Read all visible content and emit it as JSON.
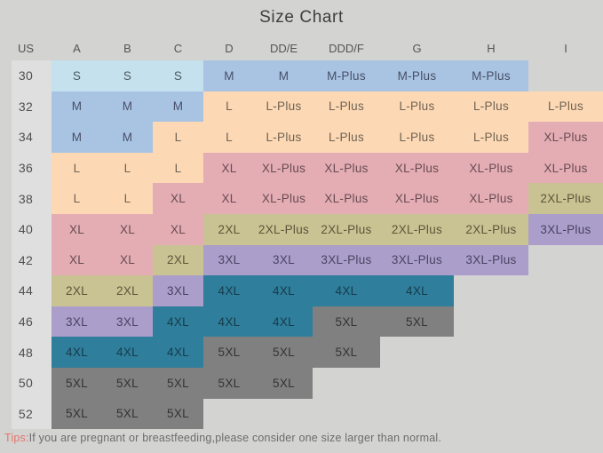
{
  "title": "Size Chart",
  "chart_data": {
    "type": "table",
    "title": "Size Chart",
    "columns": [
      "US",
      "A",
      "B",
      "C",
      "D",
      "DD/E",
      "DDD/F",
      "G",
      "H",
      "I"
    ],
    "rows": [
      {
        "us": "30",
        "cells": [
          "S",
          "S",
          "S",
          "M",
          "M",
          "M-Plus",
          "M-Plus",
          "M-Plus",
          null
        ]
      },
      {
        "us": "32",
        "cells": [
          "M",
          "M",
          "M",
          "L",
          "L-Plus",
          "L-Plus",
          "L-Plus",
          "L-Plus",
          "L-Plus"
        ]
      },
      {
        "us": "34",
        "cells": [
          "M",
          "M",
          "L",
          "L",
          "L-Plus",
          "L-Plus",
          "L-Plus",
          "L-Plus",
          "XL-Plus"
        ]
      },
      {
        "us": "36",
        "cells": [
          "L",
          "L",
          "L",
          "XL",
          "XL-Plus",
          "XL-Plus",
          "XL-Plus",
          "XL-Plus",
          "XL-Plus"
        ]
      },
      {
        "us": "38",
        "cells": [
          "L",
          "L",
          "XL",
          "XL",
          "XL-Plus",
          "XL-Plus",
          "XL-Plus",
          "XL-Plus",
          "2XL-Plus"
        ]
      },
      {
        "us": "40",
        "cells": [
          "XL",
          "XL",
          "XL",
          "2XL",
          "2XL-Plus",
          "2XL-Plus",
          "2XL-Plus",
          "2XL-Plus",
          "3XL-Plus"
        ]
      },
      {
        "us": "42",
        "cells": [
          "XL",
          "XL",
          "2XL",
          "3XL",
          "3XL",
          "3XL-Plus",
          "3XL-Plus",
          "3XL-Plus",
          null
        ]
      },
      {
        "us": "44",
        "cells": [
          "2XL",
          "2XL",
          "3XL",
          "4XL",
          "4XL",
          "4XL",
          "4XL",
          null,
          null
        ]
      },
      {
        "us": "46",
        "cells": [
          "3XL",
          "3XL",
          "4XL",
          "4XL",
          "4XL",
          "5XL",
          "5XL",
          null,
          null
        ]
      },
      {
        "us": "48",
        "cells": [
          "4XL",
          "4XL",
          "4XL",
          "5XL",
          "5XL",
          "5XL",
          null,
          null,
          null
        ]
      },
      {
        "us": "50",
        "cells": [
          "5XL",
          "5XL",
          "5XL",
          "5XL",
          "5XL",
          null,
          null,
          null,
          null
        ]
      },
      {
        "us": "52",
        "cells": [
          "5XL",
          "5XL",
          "5XL",
          null,
          null,
          null,
          null,
          null,
          null
        ]
      }
    ]
  },
  "palette": {
    "s": {
      "bg": "#c4e1ed",
      "fg": "#4b5a63"
    },
    "m": {
      "bg": "#a9c4e3",
      "fg": "#474f66"
    },
    "l": {
      "bg": "#fcd8b5",
      "fg": "#6f6352"
    },
    "xl": {
      "bg": "#e4adb4",
      "fg": "#674b51"
    },
    "2xl": {
      "bg": "#c9c293",
      "fg": "#5b563a"
    },
    "3xl": {
      "bg": "#ab9ecb",
      "fg": "#4a4361"
    },
    "4xl": {
      "bg": "#2f7e9c",
      "fg": "#173b4a"
    },
    "5xl": {
      "bg": "#808080",
      "fg": "#333333"
    }
  },
  "colors": {
    "page_background": "#d3d3d2",
    "us_column_strip": "#dfdfdf",
    "tips_label": "#e4756b"
  },
  "tips": {
    "label": "Tips:",
    "text": "If you are pregnant or breastfeeding,please consider one size larger than normal."
  }
}
